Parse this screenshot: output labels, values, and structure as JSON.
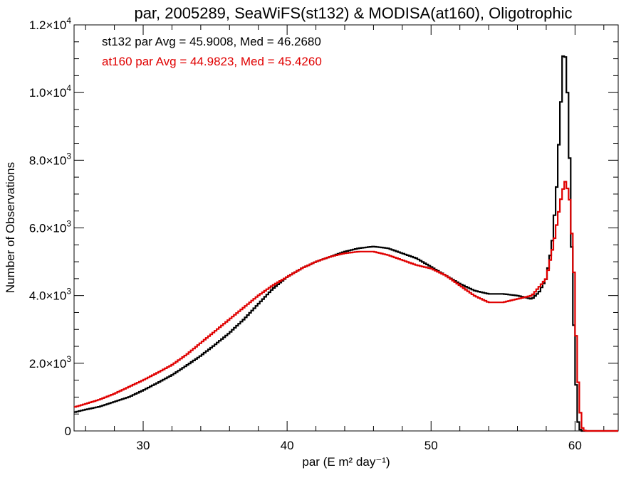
{
  "chart_data": {
    "type": "line",
    "title": "par, 2005289, SeaWiFS(st132) & MODISA(at160), Oligotrophic",
    "xlabel": "par (E m² day⁻¹)",
    "ylabel": "Number of Observations",
    "xlim": [
      25.2,
      63.0
    ],
    "ylim": [
      0,
      12000
    ],
    "x_ticks": [
      {
        "value": 30,
        "label": "30"
      },
      {
        "value": 40,
        "label": "40"
      },
      {
        "value": 50,
        "label": "50"
      },
      {
        "value": 60,
        "label": "60"
      }
    ],
    "y_ticks": [
      {
        "value": 0,
        "mantissa": "0",
        "exp": ""
      },
      {
        "value": 2000,
        "mantissa": "2.0×10",
        "exp": "3"
      },
      {
        "value": 4000,
        "mantissa": "4.0×10",
        "exp": "3"
      },
      {
        "value": 6000,
        "mantissa": "6.0×10",
        "exp": "3"
      },
      {
        "value": 8000,
        "mantissa": "8.0×10",
        "exp": "3"
      },
      {
        "value": 10000,
        "mantissa": "1.0×10",
        "exp": "4"
      },
      {
        "value": 12000,
        "mantissa": "1.2×10",
        "exp": "4"
      }
    ],
    "grid": false,
    "legend": "top-left",
    "series": [
      {
        "label": "st132 par Avg = 45.9008, Med = 46.2680",
        "color": "#000000",
        "points": [
          [
            25.2,
            550
          ],
          [
            26,
            630
          ],
          [
            27,
            720
          ],
          [
            28,
            860
          ],
          [
            29,
            1000
          ],
          [
            30,
            1200
          ],
          [
            31,
            1420
          ],
          [
            32,
            1650
          ],
          [
            33,
            1930
          ],
          [
            34,
            2220
          ],
          [
            35,
            2550
          ],
          [
            36,
            2900
          ],
          [
            37,
            3300
          ],
          [
            38,
            3750
          ],
          [
            39,
            4200
          ],
          [
            40,
            4550
          ],
          [
            41,
            4800
          ],
          [
            42,
            5000
          ],
          [
            43,
            5150
          ],
          [
            44,
            5300
          ],
          [
            45,
            5400
          ],
          [
            46,
            5450
          ],
          [
            47,
            5400
          ],
          [
            48,
            5250
          ],
          [
            49,
            5100
          ],
          [
            50,
            4850
          ],
          [
            51,
            4600
          ],
          [
            52,
            4350
          ],
          [
            53,
            4150
          ],
          [
            54,
            4050
          ],
          [
            55,
            4050
          ],
          [
            56,
            4000
          ],
          [
            57,
            3900
          ],
          [
            57.5,
            4100
          ],
          [
            58,
            4500
          ],
          [
            58.4,
            5500
          ],
          [
            58.7,
            7000
          ],
          [
            59,
            9500
          ],
          [
            59.2,
            11300
          ],
          [
            59.4,
            10900
          ],
          [
            59.6,
            8500
          ],
          [
            59.8,
            5000
          ],
          [
            60,
            2000
          ],
          [
            60.2,
            300
          ],
          [
            60.4,
            0
          ],
          [
            63,
            0
          ]
        ]
      },
      {
        "label": "at160 par Avg = 44.9823, Med = 45.4260",
        "color": "#e00000",
        "points": [
          [
            25.2,
            700
          ],
          [
            26,
            800
          ],
          [
            27,
            930
          ],
          [
            28,
            1100
          ],
          [
            29,
            1300
          ],
          [
            30,
            1500
          ],
          [
            31,
            1720
          ],
          [
            32,
            1950
          ],
          [
            33,
            2250
          ],
          [
            34,
            2600
          ],
          [
            35,
            2950
          ],
          [
            36,
            3300
          ],
          [
            37,
            3650
          ],
          [
            38,
            4000
          ],
          [
            39,
            4300
          ],
          [
            40,
            4550
          ],
          [
            41,
            4800
          ],
          [
            42,
            5000
          ],
          [
            43,
            5150
          ],
          [
            44,
            5250
          ],
          [
            45,
            5300
          ],
          [
            46,
            5300
          ],
          [
            47,
            5200
          ],
          [
            48,
            5050
          ],
          [
            49,
            4900
          ],
          [
            50,
            4800
          ],
          [
            51,
            4600
          ],
          [
            52,
            4300
          ],
          [
            53,
            4000
          ],
          [
            54,
            3800
          ],
          [
            55,
            3800
          ],
          [
            56,
            3900
          ],
          [
            57,
            4000
          ],
          [
            58,
            4500
          ],
          [
            58.5,
            5500
          ],
          [
            59,
            6800
          ],
          [
            59.3,
            7400
          ],
          [
            59.6,
            7000
          ],
          [
            59.9,
            5000
          ],
          [
            60.1,
            2500
          ],
          [
            60.3,
            800
          ],
          [
            60.5,
            100
          ],
          [
            60.7,
            0
          ],
          [
            63,
            0
          ]
        ]
      }
    ]
  }
}
